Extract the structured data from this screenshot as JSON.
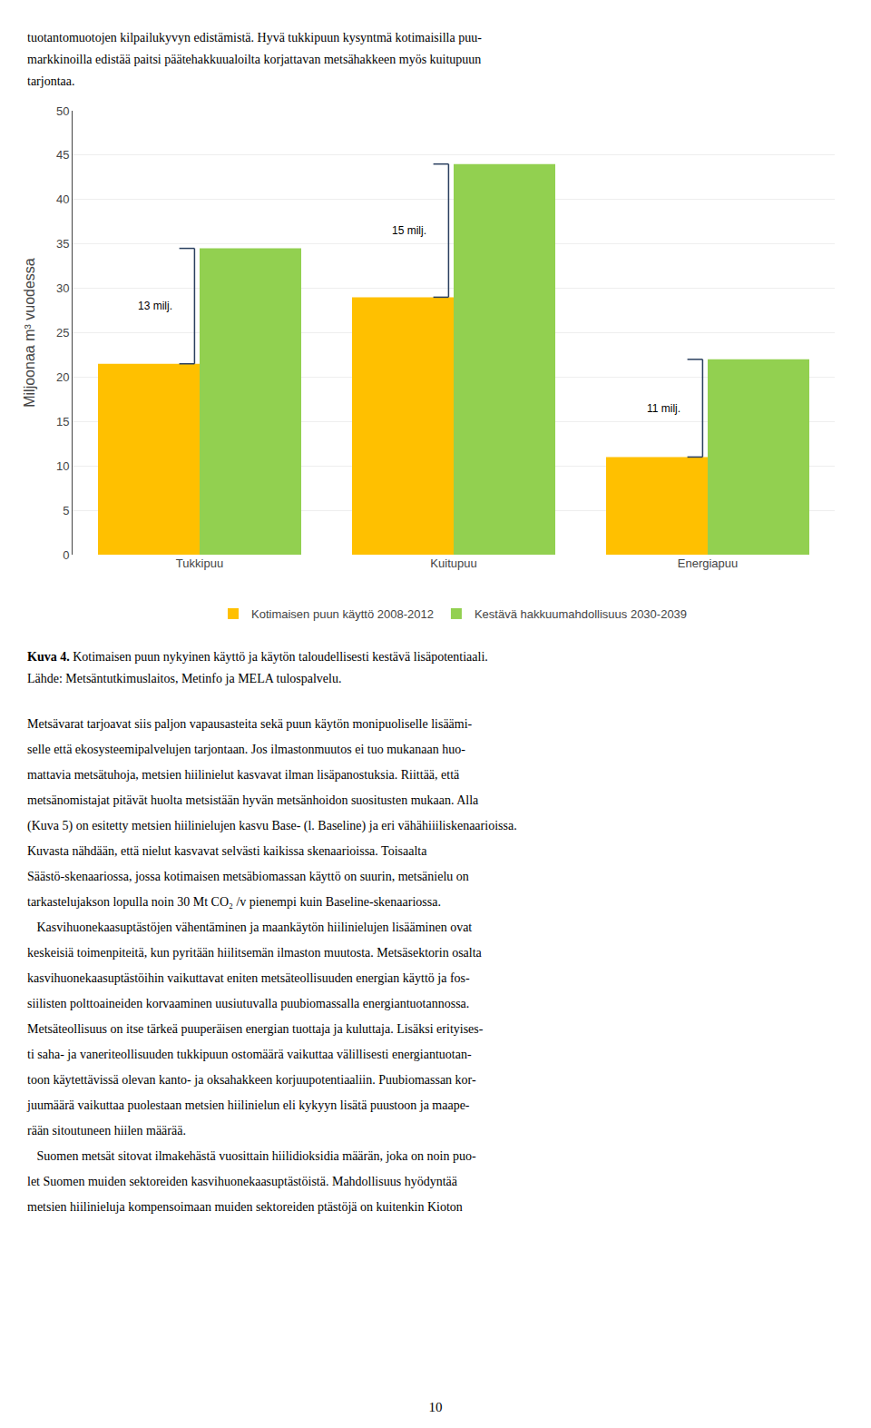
{
  "text_above": [
    "tuotantomuotojen kilpailukyvyn edistämistä. Hyvä tukkipuun kysyntmä kotimaisilla puu-",
    "markkinoilla edistää paitsi päätehakkuualoilta korjattavan metsähakkeen myös kuitupuun",
    "tarjontaa."
  ],
  "chart_data": {
    "type": "bar",
    "categories": [
      "Tukkipuu",
      "Kuitupuu",
      "Energiapuu"
    ],
    "series": [
      {
        "name": "Kotimaisen puun käyttö 2008-2012",
        "color": "#FFC000",
        "values": [
          21.5,
          29.0,
          11.0
        ]
      },
      {
        "name": "Kestävä hakkuumahdollisuus 2030-2039",
        "color": "#92D050",
        "values": [
          34.5,
          44.0,
          22.0
        ]
      }
    ],
    "ylabel": "Miljoonaa m³ vuodessa",
    "ylim": [
      0,
      50
    ],
    "yticks": [
      0,
      5,
      10,
      15,
      20,
      25,
      30,
      35,
      40,
      45,
      50
    ],
    "grid": true,
    "legend": "bottom",
    "annotations": [
      {
        "text": "13 milj."
      },
      {
        "text": "15 milj."
      },
      {
        "text": "11 milj."
      }
    ]
  },
  "caption_bold": "Kuva 4.",
  "caption_rest": " Kotimaisen puun nykyinen käyttö ja käytön taloudellisesti kestävä lisäpotentiaali.",
  "caption_line2": "Lähde: Metsäntutkimuslaitos, Metinfo ja MELA tulospalvelu.",
  "text_below": [
    "Metsävarat tarjoavat siis paljon vapausasteita sekä puun käytön monipuoliselle lisäämi-",
    "selle että ekosysteemipalvelujen tarjontaan. Jos ilmastonmuutos ei tuo mukanaan huo-",
    "mattavia metsätuhoja, metsien hiilinielut kasvavat ilman lisäpanostuksia. Riittää, että",
    "metsänomistajat pitävät huolta metsistään hyvän metsänhoidon suositusten mukaan. Alla",
    "(Kuva 5) on esitetty metsien hiilinielujen kasvu Base- (l. Baseline) ja eri vähähiiiliskenaarioissa.",
    "Kuvasta nähdään, että nielut kasvavat selvästi kaikissa skenaarioissa. Toisaalta",
    "Säästö-skenaariossa, jossa kotimaisen metsäbiomassan käyttö on suurin, metsänielu on",
    "tarkastelujakson lopulla noin 30 Mt CO₂ /v pienempi kuin Baseline-skenaariossa.",
    "   Kasvihuonekaasuptästöjen vähentäminen ja maankäytön hiilinielujen lisääminen ovat",
    "keskeisiä toimenpiteitä, kun pyritään hiilitsemän ilmaston muutosta. Metsäsektorin osalta",
    "kasvihuonekaasuptästöihin vaikuttavat eniten metsäteollisuuden energian käyttö ja fos-",
    "siilisten polttoaineiden korvaaminen uusiutuvalla puubiomassalla energiantuotannossa.",
    "Metsäteollisuus on itse tärkeä puuperäisen energian tuottaja ja kuluttaja. Lisäksi erityises-",
    "ti saha- ja vaneriteollisuuden tukkipuun ostomäärä vaikuttaa välillisesti energiantuotan-",
    "toon käytettävissä olevan kanto- ja oksahakkeen korjuupotentiaaliin. Puubiomassan kor-",
    "juumäärä vaikuttaa puolestaan metsien hiilinielun eli kykyyn lisätä puustoon ja maape-",
    "rään sitoutuneen hiilen määrää.",
    "   Suomen metsät sitovat ilmakehästä vuosittain hiilidioksidia määrän, joka on noin puo-",
    "let Suomen muiden sektoreiden kasvihuonekaasuptästöistä. Mahdollisuus hyödyntää",
    "metsien hiilinieluja kompensoimaan muiden sektoreiden ptästöjä on kuitenkin Kioton"
  ],
  "page_number": "10"
}
